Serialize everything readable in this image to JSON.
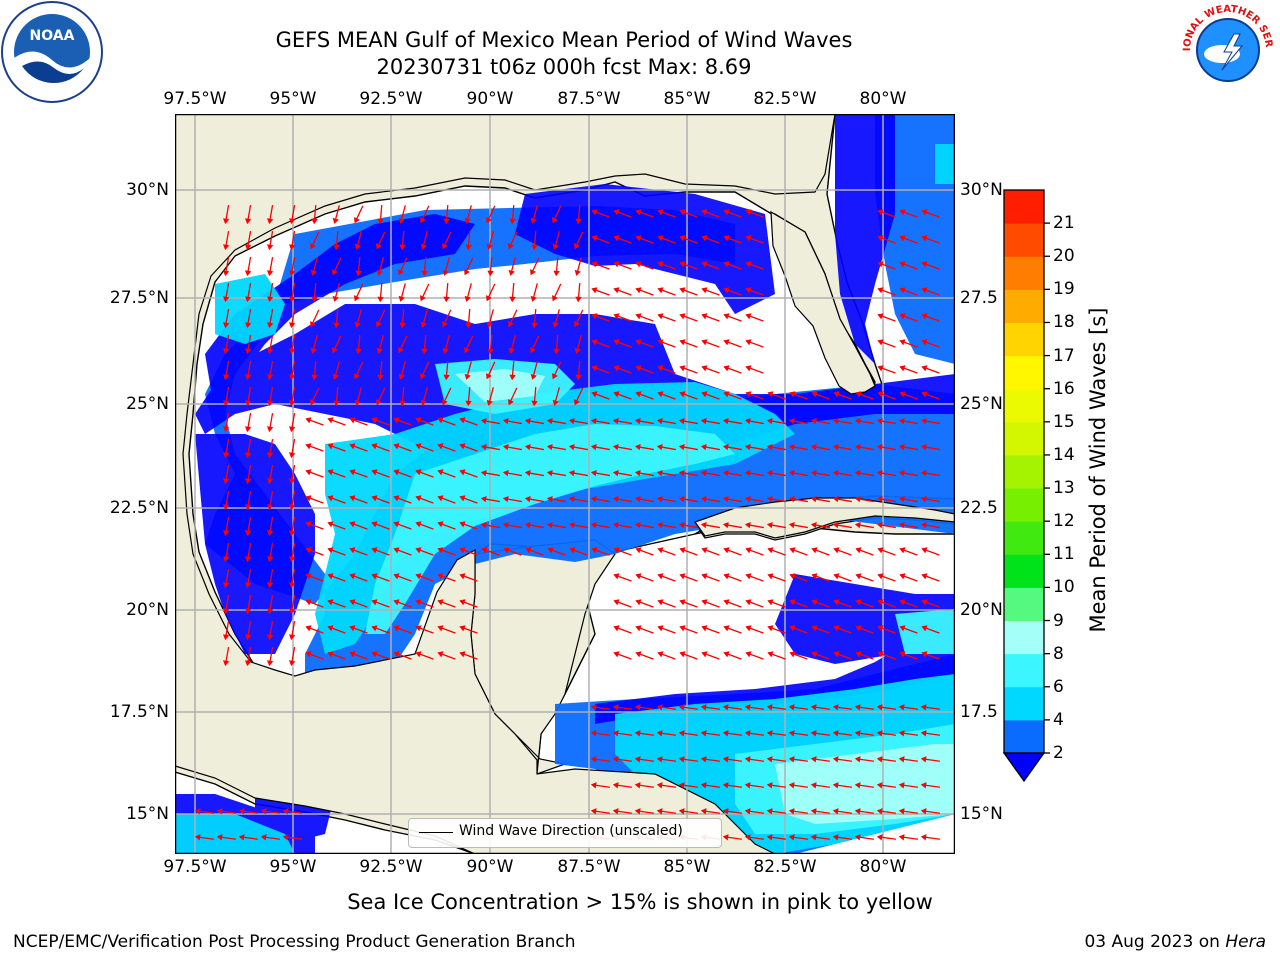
{
  "title": {
    "line1": "GEFS MEAN Gulf of Mexico Mean Period of Wind Waves",
    "line2": "20230731 t06z 000h fcst   Max: 8.69"
  },
  "map": {
    "lon_ticks": [
      "97.5°W",
      "95°W",
      "92.5°W",
      "90°W",
      "87.5°W",
      "85°W",
      "82.5°W",
      "80°W"
    ],
    "lat_ticks_left": [
      "30°N",
      "27.5°N",
      "25°N",
      "22.5°N",
      "20°N",
      "17.5°N",
      "15°N"
    ],
    "lat_ticks_right": [
      "30°N",
      "27.5",
      "25°N",
      "22.5",
      "20°N",
      "17.5",
      "15°N"
    ],
    "extent": {
      "lon_min": -98,
      "lon_max": -78.2,
      "lat_min": 14,
      "lat_max": 31.7
    },
    "colors": {
      "land": "#efeedb",
      "no_data": "#ffffff",
      "arrow": "#ff0000",
      "grid": "#b0b0b0"
    },
    "legend": {
      "label": "Wind Wave Direction (unscaled)"
    }
  },
  "colorbar": {
    "label": "Mean Period of Wind Waves [s]",
    "tick_labels": [
      "2",
      "4",
      "6",
      "8",
      "9",
      "10",
      "11",
      "12",
      "13",
      "14",
      "15",
      "16",
      "17",
      "18",
      "19",
      "20",
      "21"
    ],
    "colors": [
      "#0a6cff",
      "#00d8ff",
      "#3cf6ff",
      "#a4fff9",
      "#55f980",
      "#00e31a",
      "#40ea10",
      "#76f000",
      "#a6f300",
      "#d2f700",
      "#ecfa00",
      "#fff700",
      "#ffd400",
      "#ffab00",
      "#ff7d00",
      "#ff4b00",
      "#ff1e00"
    ],
    "extend_color": "#0000ff"
  },
  "footer": {
    "note": "Sea Ice Concentration > 15% is shown in pink to yellow",
    "credit": "NCEP/EMC/Verification Post Processing Product Generation Branch",
    "date": "03 Aug 2023 on",
    "machine": "Hera"
  },
  "logos": {
    "left": "NOAA",
    "right": "NATIONAL WEATHER SERVICE"
  }
}
